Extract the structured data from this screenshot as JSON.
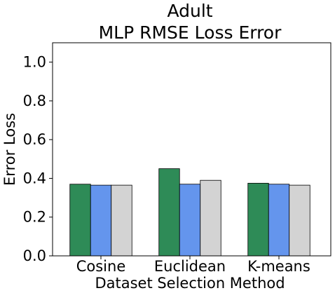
{
  "chart_data": {
    "type": "bar",
    "title": "Adult",
    "subtitle": "MLP RMSE Loss Error",
    "xlabel": "Dataset Selection Method",
    "ylabel": "Error Loss",
    "categories": [
      "Cosine",
      "Euclidean",
      "K-means"
    ],
    "series": [
      {
        "values": [
          0.37,
          0.45,
          0.375
        ],
        "color": "#2e8b57"
      },
      {
        "values": [
          0.365,
          0.37,
          0.37
        ],
        "color": "#6495ed"
      },
      {
        "values": [
          0.365,
          0.39,
          0.365
        ],
        "color": "#d3d3d3"
      }
    ],
    "ylim": [
      0,
      1.1
    ],
    "yticks": [
      0.0,
      0.2,
      0.4,
      0.6,
      0.8,
      1.0
    ],
    "ytick_labels": [
      "0.0",
      "0.2",
      "0.4",
      "0.6",
      "0.8",
      "1.0"
    ],
    "grid": false,
    "legend": "none"
  }
}
